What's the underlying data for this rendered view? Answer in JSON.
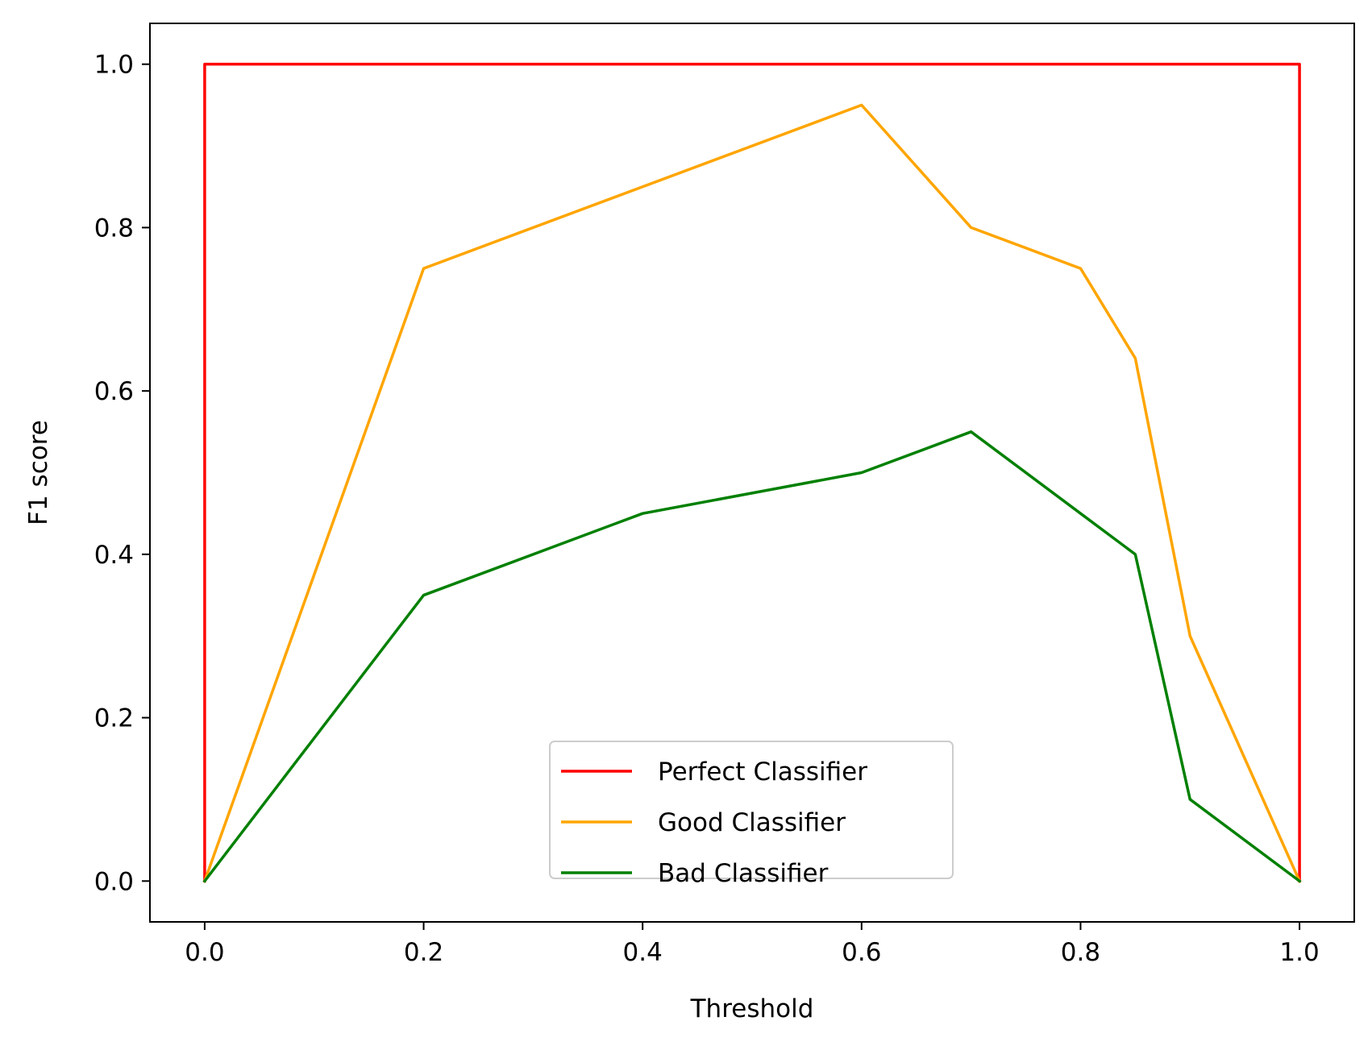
{
  "chart_data": {
    "type": "line",
    "title": "",
    "xlabel": "Threshold",
    "ylabel": "F1 score",
    "xlim": [
      -0.05,
      1.05
    ],
    "ylim": [
      -0.05,
      1.05
    ],
    "xticks": [
      0.0,
      0.2,
      0.4,
      0.6,
      0.8,
      1.0
    ],
    "xtick_labels": [
      "0.0",
      "0.2",
      "0.4",
      "0.6",
      "0.8",
      "1.0"
    ],
    "yticks": [
      0.0,
      0.2,
      0.4,
      0.6,
      0.8,
      1.0
    ],
    "ytick_labels": [
      "0.0",
      "0.2",
      "0.4",
      "0.6",
      "0.8",
      "1.0"
    ],
    "grid": false,
    "legend": {
      "position": "bottom-center"
    },
    "series": [
      {
        "name": "Perfect Classifier",
        "color": "#ff0000",
        "x": [
          0.0,
          0.0,
          1.0,
          1.0
        ],
        "y": [
          0.0,
          1.0,
          1.0,
          0.0
        ]
      },
      {
        "name": "Good Classifier",
        "color": "#ffa500",
        "x": [
          0.0,
          0.2,
          0.4,
          0.6,
          0.7,
          0.8,
          0.85,
          0.9,
          1.0
        ],
        "y": [
          0.0,
          0.75,
          0.85,
          0.95,
          0.8,
          0.75,
          0.64,
          0.3,
          0.0
        ]
      },
      {
        "name": "Bad Classifier",
        "color": "#008000",
        "x": [
          0.0,
          0.2,
          0.4,
          0.6,
          0.7,
          0.8,
          0.85,
          0.9,
          1.0
        ],
        "y": [
          0.0,
          0.35,
          0.45,
          0.5,
          0.55,
          0.45,
          0.4,
          0.1,
          0.0
        ]
      }
    ]
  }
}
